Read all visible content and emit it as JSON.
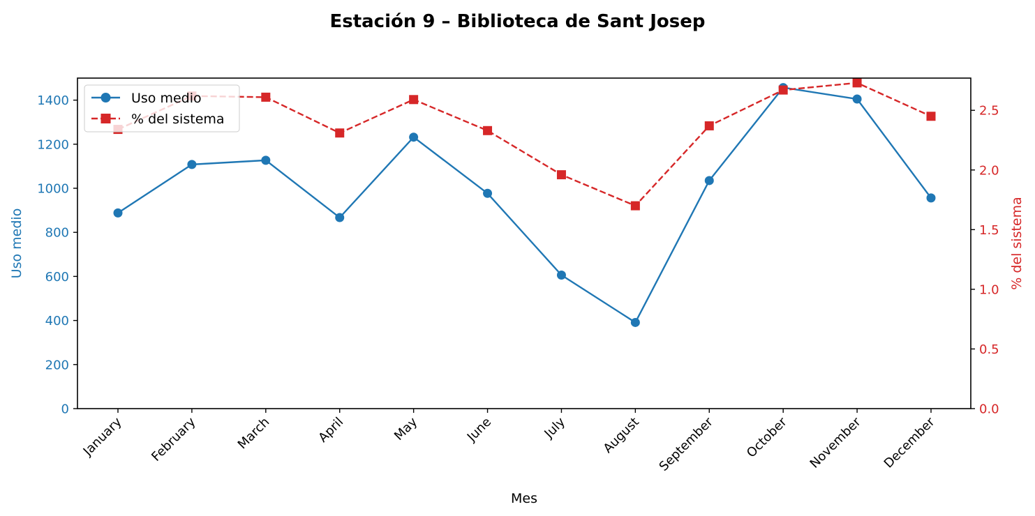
{
  "chart_data": {
    "type": "line",
    "title": "Estación 9 – Biblioteca de Sant Josep",
    "xlabel": "Mes",
    "ylabel_left": "Uso medio",
    "ylabel_right": "% del sistema",
    "categories": [
      "January",
      "February",
      "March",
      "April",
      "May",
      "June",
      "July",
      "August",
      "September",
      "October",
      "November",
      "December"
    ],
    "ylim_left": [
      0,
      1500
    ],
    "ylim_right": [
      0,
      2.77
    ],
    "yticks_left": [
      0,
      200,
      400,
      600,
      800,
      1000,
      1200,
      1400
    ],
    "yticks_right": [
      0.0,
      0.5,
      1.0,
      1.5,
      2.0,
      2.5
    ],
    "ytick_labels_right": [
      "0.0",
      "0.5",
      "1.0",
      "1.5",
      "2.0",
      "2.5"
    ],
    "grid": false,
    "legend_position": "top-left",
    "series": [
      {
        "name": "Uso medio",
        "axis": "left",
        "color": "#1f77b4",
        "marker": "circle",
        "line_style": "solid",
        "values": [
          888,
          1108,
          1127,
          867,
          1232,
          977,
          606,
          391,
          1035,
          1457,
          1405,
          956
        ]
      },
      {
        "name": "% del sistema",
        "axis": "right",
        "color": "#d62728",
        "marker": "square",
        "line_style": "dashed",
        "values": [
          2.34,
          2.62,
          2.61,
          2.31,
          2.59,
          2.33,
          1.96,
          1.7,
          2.37,
          2.67,
          2.73,
          2.45
        ]
      }
    ],
    "colors": {
      "left_axis": "#1f77b4",
      "right_axis": "#d62728"
    }
  }
}
